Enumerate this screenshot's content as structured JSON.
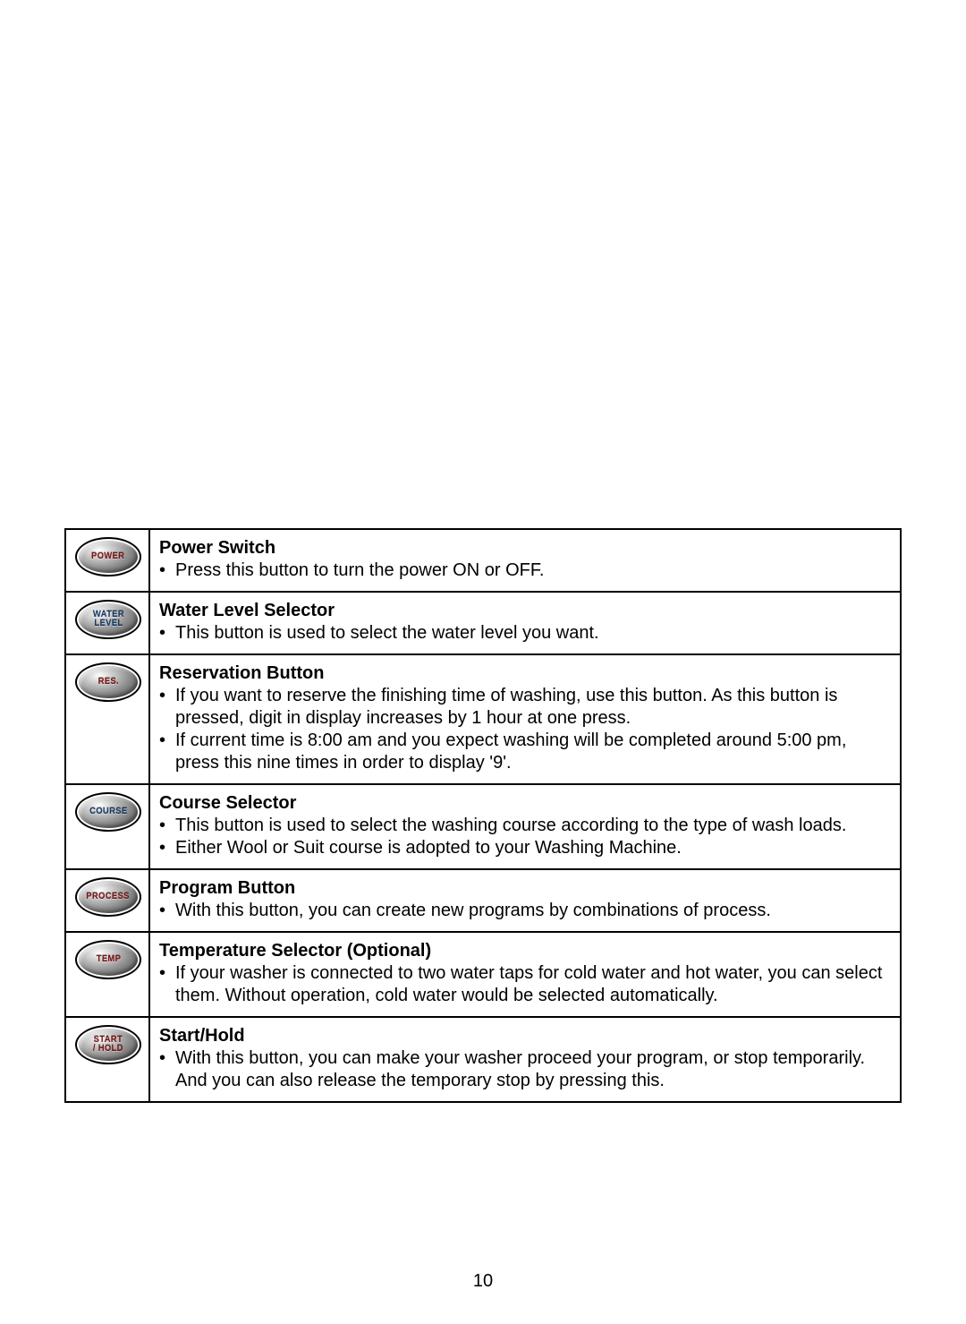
{
  "page_number": "10",
  "button_label_colors": {
    "POWER": "#7a1212",
    "WATER LEVEL": "#133a66",
    "RES.": "#7a1212",
    "COURSE": "#133a66",
    "PROCESS": "#7a1212",
    "TEMP": "#7a1212",
    "START / HOLD": "#7a1212"
  },
  "rows": [
    {
      "button_text": "POWER",
      "button_text_multiline": "POWER",
      "title": "Power Switch",
      "bullets": [
        "Press this button to turn the power ON or OFF."
      ]
    },
    {
      "button_text": "WATER LEVEL",
      "button_text_multiline": "WATER\nLEVEL",
      "title": "Water Level Selector",
      "bullets": [
        "This button is used to select the water level you want."
      ]
    },
    {
      "button_text": "RES.",
      "button_text_multiline": "RES.",
      "title": "Reservation Button",
      "bullets": [
        "If you want to reserve the finishing time of washing, use this button. As this button is pressed, digit in display increases by 1 hour at one press.",
        "If current time is 8:00 am and you expect washing will be completed around 5:00 pm, press this nine times in order to display '9'."
      ]
    },
    {
      "button_text": "COURSE",
      "button_text_multiline": "COURSE",
      "title": "Course Selector",
      "bullets": [
        "This button is used to select the washing course according to the type of wash loads.",
        "Either Wool or Suit course is adopted to your Washing Machine."
      ]
    },
    {
      "button_text": "PROCESS",
      "button_text_multiline": "PROCESS",
      "title": "Program Button",
      "bullets": [
        "With this button, you can create new programs by combinations of process."
      ]
    },
    {
      "button_text": "TEMP",
      "button_text_multiline": "TEMP",
      "title": "Temperature Selector (Optional)",
      "bullets": [
        "If your washer is connected to two water taps for cold water and hot water, you can select them. Without operation, cold water would be selected automatically."
      ]
    },
    {
      "button_text": "START / HOLD",
      "button_text_multiline": "START\n/ HOLD",
      "title": "Start/Hold",
      "bullets": [
        "With this button, you can make your washer proceed your program, or stop temporarily. And you can also release the temporary stop by pressing this."
      ]
    }
  ]
}
